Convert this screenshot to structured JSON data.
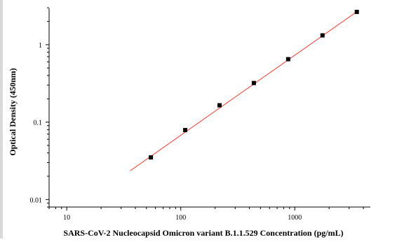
{
  "chart_data": {
    "type": "scatter",
    "title": "",
    "xlabel": "SARS-CoV-2 Nucleocapsid Omicron variant B.1.1.529 Concentration (pg/mL)",
    "ylabel": "Optical Density (450nm)",
    "xscale": "log",
    "yscale": "log",
    "xlim": [
      7,
      4600
    ],
    "ylim": [
      0.008,
      3.2
    ],
    "xticks": [
      10,
      100,
      1000
    ],
    "xtick_labels": [
      "10",
      "100",
      "1000"
    ],
    "yticks": [
      0.01,
      0.1,
      1
    ],
    "ytick_labels": [
      "0.01",
      "0.1",
      "1"
    ],
    "grid": false,
    "legend": "none",
    "series": [
      {
        "marker": "square",
        "color": "#000000",
        "points": [
          {
            "x": 54.7,
            "y": 0.035
          },
          {
            "x": 109.4,
            "y": 0.079
          },
          {
            "x": 218.8,
            "y": 0.165
          },
          {
            "x": 437.5,
            "y": 0.32
          },
          {
            "x": 875,
            "y": 0.65
          },
          {
            "x": 1750,
            "y": 1.32
          },
          {
            "x": 3500,
            "y": 2.65
          }
        ]
      }
    ],
    "fit_line": {
      "color": "#ff3b30",
      "x_start": 36,
      "x_end": 3600,
      "points": [
        {
          "x": 36,
          "y": 0.0235
        },
        {
          "x": 3600,
          "y": 2.75
        }
      ]
    }
  }
}
